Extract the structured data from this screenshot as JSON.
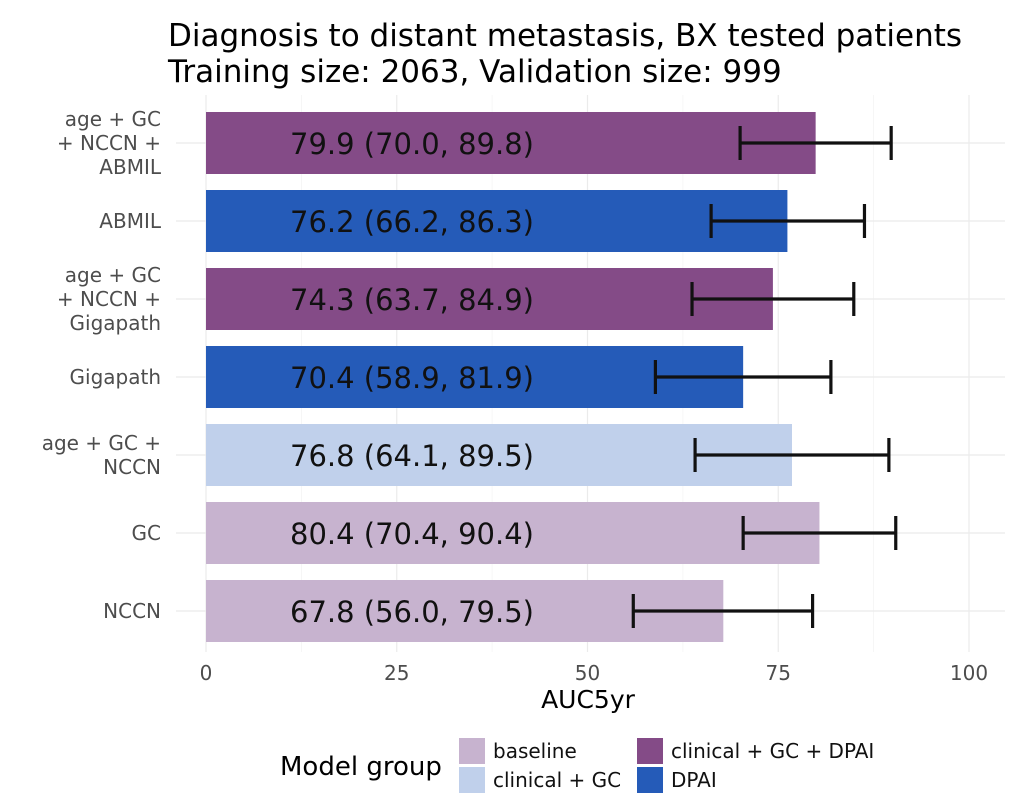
{
  "chart_data": {
    "type": "bar",
    "orientation": "horizontal",
    "title": "Diagnosis to distant metastasis, BX tested patients",
    "subtitle": "Training size: 2063, Validation size: 999",
    "xlabel": "AUC5yr",
    "ylabel": "",
    "xlim": [
      0,
      105
    ],
    "xticks": [
      0,
      25,
      50,
      75,
      100
    ],
    "grid": true,
    "colors": {
      "baseline": "#c7b3cf",
      "clinical + GC": "#c0d0eb",
      "clinical + GC + DPAI": "#844b87",
      "DPAI": "#255bb8"
    },
    "bars": [
      {
        "label": [
          "age + GC",
          "+ NCCN +",
          "ABMIL"
        ],
        "value": 79.9,
        "ci_low": 70.0,
        "ci_high": 89.8,
        "group": "clinical + GC + DPAI",
        "text": "79.9 (70.0, 89.8)"
      },
      {
        "label": [
          "ABMIL"
        ],
        "value": 76.2,
        "ci_low": 66.2,
        "ci_high": 86.3,
        "group": "DPAI",
        "text": "76.2 (66.2, 86.3)"
      },
      {
        "label": [
          "age + GC",
          "+ NCCN +",
          "Gigapath"
        ],
        "value": 74.3,
        "ci_low": 63.7,
        "ci_high": 84.9,
        "group": "clinical + GC + DPAI",
        "text": "74.3 (63.7, 84.9)"
      },
      {
        "label": [
          "Gigapath"
        ],
        "value": 70.4,
        "ci_low": 58.9,
        "ci_high": 81.9,
        "group": "DPAI",
        "text": "70.4 (58.9, 81.9)"
      },
      {
        "label": [
          "age + GC +",
          "NCCN"
        ],
        "value": 76.8,
        "ci_low": 64.1,
        "ci_high": 89.5,
        "group": "clinical + GC",
        "text": "76.8 (64.1, 89.5)"
      },
      {
        "label": [
          "GC"
        ],
        "value": 80.4,
        "ci_low": 70.4,
        "ci_high": 90.4,
        "group": "baseline",
        "text": "80.4 (70.4, 90.4)"
      },
      {
        "label": [
          "NCCN"
        ],
        "value": 67.8,
        "ci_low": 56.0,
        "ci_high": 79.5,
        "group": "baseline",
        "text": "67.8 (56.0, 79.5)"
      }
    ],
    "legend": {
      "title": "Model group",
      "placement": "bottom",
      "entries": [
        "baseline",
        "clinical + GC",
        "clinical + GC + DPAI",
        "DPAI"
      ]
    }
  }
}
